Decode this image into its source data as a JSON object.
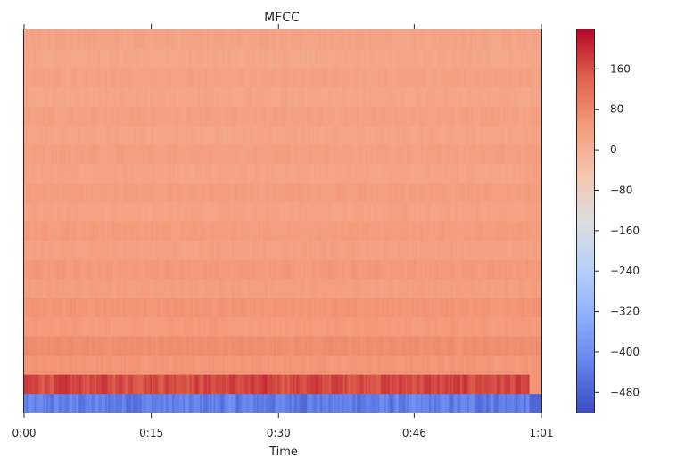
{
  "chart_data": {
    "type": "heatmap",
    "title": "MFCC",
    "xlabel": "Time",
    "ylabel": "",
    "x_tick_labels": [
      "0:00",
      "0:15",
      "0:30",
      "0:46",
      "1:01"
    ],
    "x_tick_values_seconds": [
      0,
      15,
      30,
      46,
      61
    ],
    "xlim_seconds": [
      0,
      61
    ],
    "n_coefficients": 20,
    "y_ticks_shown": false,
    "grid": false,
    "colormap": "coolwarm",
    "colorbar": {
      "placement": "right",
      "vmin": -520,
      "vmax": 240,
      "ticks": [
        -480,
        -400,
        -320,
        -240,
        -160,
        -80,
        0,
        80,
        160
      ],
      "tick_labels": [
        "−480",
        "−400",
        "−320",
        "−240",
        "−160",
        "−80",
        "0",
        "80",
        "160"
      ]
    },
    "approx_row_means_bottom_to_top": [
      -430,
      170,
      55,
      70,
      48,
      58,
      40,
      50,
      35,
      45,
      32,
      42,
      30,
      38,
      28,
      36,
      26,
      34,
      24,
      30
    ]
  }
}
